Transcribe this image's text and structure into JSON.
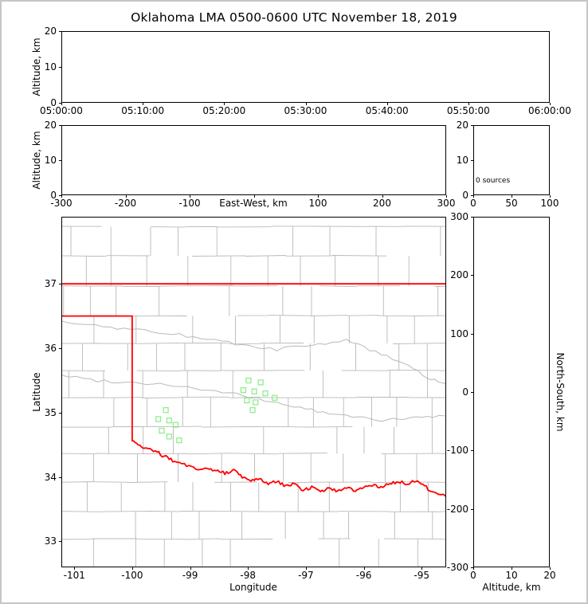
{
  "title": "Oklahoma LMA 0500-0600 UTC November 18, 2019",
  "colors": {
    "background": "#ffffff",
    "frame_border": "#c6c6c6",
    "axis": "#000000",
    "county_line": "#b9b9b9",
    "state_border": "#ff0000",
    "station_marker": "#90ee90"
  },
  "panels": {
    "time_height": {
      "ylabel": "Altitude, km",
      "yticks": [
        "20",
        "10",
        "0"
      ],
      "xticks": [
        "05:00:00",
        "05:10:00",
        "05:20:00",
        "05:30:00",
        "05:40:00",
        "05:50:00",
        "06:00:00"
      ]
    },
    "ew_height": {
      "ylabel": "Altitude, km",
      "xlabel": "East-West, km",
      "yticks": [
        "20",
        "10",
        "0"
      ],
      "xticks": [
        "-300",
        "-200",
        "-100",
        "",
        "100",
        "200",
        "300"
      ]
    },
    "alt_histogram": {
      "yticks": [
        "20",
        "10",
        "0"
      ],
      "xticks": [
        "0",
        "50",
        "100"
      ],
      "annotation": "0 sources"
    },
    "plan_view": {
      "xlabel": "Longitude",
      "ylabel": "Latitude",
      "xticks": [
        "-101",
        "-100",
        "-99",
        "-98",
        "-97",
        "-96",
        "-95"
      ],
      "yticks": [
        "37",
        "36",
        "35",
        "34",
        "33"
      ]
    },
    "ns_height": {
      "xlabel": "Altitude, km",
      "ylabel_right": "North-South, km",
      "xticks": [
        "0",
        "10",
        "20"
      ],
      "yticks": [
        "300",
        "200",
        "100",
        "0",
        "-100",
        "-200",
        "-300"
      ]
    }
  },
  "map": {
    "north_border_lat": 37.0,
    "panhandle_south_border_lat": 36.5,
    "meridian_border_lon": -100.0,
    "red_river_lon_lat": [
      [
        -100.0,
        34.56
      ],
      [
        -99.9,
        34.5
      ],
      [
        -99.75,
        34.44
      ],
      [
        -99.6,
        34.41
      ],
      [
        -99.45,
        34.32
      ],
      [
        -99.3,
        34.26
      ],
      [
        -99.1,
        34.2
      ],
      [
        -98.9,
        34.13
      ],
      [
        -98.7,
        34.13
      ],
      [
        -98.55,
        34.1
      ],
      [
        -98.4,
        34.06
      ],
      [
        -98.25,
        34.1
      ],
      [
        -98.1,
        34.01
      ],
      [
        -97.95,
        33.95
      ],
      [
        -97.8,
        33.97
      ],
      [
        -97.65,
        33.9
      ],
      [
        -97.5,
        33.93
      ],
      [
        -97.35,
        33.86
      ],
      [
        -97.2,
        33.9
      ],
      [
        -97.05,
        33.8
      ],
      [
        -96.9,
        33.84
      ],
      [
        -96.75,
        33.78
      ],
      [
        -96.6,
        33.83
      ],
      [
        -96.45,
        33.78
      ],
      [
        -96.3,
        33.84
      ],
      [
        -96.15,
        33.8
      ],
      [
        -96.0,
        33.85
      ],
      [
        -95.85,
        33.88
      ],
      [
        -95.7,
        33.84
      ],
      [
        -95.55,
        33.9
      ],
      [
        -95.4,
        33.93
      ],
      [
        -95.25,
        33.89
      ],
      [
        -95.1,
        33.94
      ],
      [
        -94.95,
        33.86
      ],
      [
        -94.8,
        33.76
      ],
      [
        -94.58,
        33.7
      ]
    ],
    "gray_rivers_lon_lat": [
      [
        [
          -101.21,
          35.58
        ],
        [
          -100.6,
          35.5
        ],
        [
          -100.0,
          35.47
        ],
        [
          -99.4,
          35.44
        ],
        [
          -98.8,
          35.36
        ],
        [
          -98.2,
          35.28
        ],
        [
          -97.6,
          35.17
        ],
        [
          -97.1,
          35.08
        ],
        [
          -96.6,
          34.98
        ],
        [
          -96.1,
          34.93
        ],
        [
          -95.6,
          34.88
        ],
        [
          -95.1,
          34.92
        ],
        [
          -94.6,
          34.95
        ]
      ],
      [
        [
          -101.21,
          36.42
        ],
        [
          -100.5,
          36.33
        ],
        [
          -99.9,
          36.3
        ],
        [
          -99.3,
          36.22
        ],
        [
          -98.7,
          36.15
        ],
        [
          -98.1,
          36.05
        ],
        [
          -97.5,
          35.98
        ],
        [
          -96.9,
          36.05
        ],
        [
          -96.3,
          36.12
        ],
        [
          -95.8,
          35.95
        ],
        [
          -95.3,
          35.75
        ],
        [
          -94.9,
          35.55
        ],
        [
          -94.59,
          35.45
        ]
      ]
    ]
  },
  "chart_data": {
    "type": "scatter",
    "title": "Oklahoma LMA 0500-0600 UTC November 18, 2019",
    "source_count": 0,
    "panels": [
      {
        "name": "time_height",
        "xlim": [
          "05:00:00",
          "06:00:00"
        ],
        "ylabel": "Altitude, km",
        "ylim": [
          0,
          20
        ],
        "points": []
      },
      {
        "name": "east_west_height",
        "xlabel": "East-West, km",
        "xlim": [
          -300,
          300
        ],
        "ylabel": "Altitude, km",
        "ylim": [
          0,
          20
        ],
        "points": []
      },
      {
        "name": "altitude_histogram",
        "xlim": [
          0,
          100
        ],
        "ylim": [
          0,
          20
        ],
        "annotation": "0 sources",
        "values": []
      },
      {
        "name": "plan_view",
        "xlabel": "Longitude",
        "xlim": [
          -101.2,
          -94.6
        ],
        "ylabel": "Latitude",
        "ylim": [
          32.6,
          38.0
        ],
        "points": []
      },
      {
        "name": "north_south_height",
        "xlabel": "Altitude, km",
        "xlim": [
          0,
          20
        ],
        "ylabel": "North-South, km",
        "ylim": [
          -300,
          300
        ],
        "points": []
      }
    ],
    "lma_stations_lon_lat": [
      [
        -99.42,
        35.04
      ],
      [
        -99.55,
        34.9
      ],
      [
        -99.36,
        34.88
      ],
      [
        -99.25,
        34.81
      ],
      [
        -99.49,
        34.72
      ],
      [
        -99.36,
        34.63
      ],
      [
        -99.19,
        34.57
      ],
      [
        -97.99,
        35.5
      ],
      [
        -97.78,
        35.47
      ],
      [
        -98.08,
        35.35
      ],
      [
        -97.89,
        35.33
      ],
      [
        -97.7,
        35.3
      ],
      [
        -98.02,
        35.19
      ],
      [
        -97.87,
        35.16
      ],
      [
        -97.54,
        35.23
      ],
      [
        -97.92,
        35.04
      ]
    ]
  }
}
